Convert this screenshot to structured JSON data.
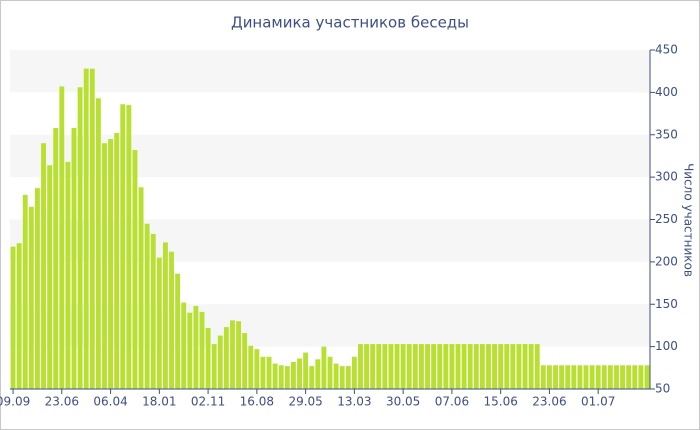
{
  "chart_data": {
    "type": "bar",
    "title": "Динамика участников беседы",
    "y_label": "Число участников",
    "categories": [
      "09.09",
      null,
      null,
      null,
      null,
      null,
      null,
      null,
      "23.06",
      null,
      null,
      null,
      null,
      null,
      null,
      null,
      "06.04",
      null,
      null,
      null,
      null,
      null,
      null,
      null,
      "18.01",
      null,
      null,
      null,
      null,
      null,
      null,
      null,
      "02.11",
      null,
      null,
      null,
      null,
      null,
      null,
      null,
      "16.08",
      null,
      null,
      null,
      null,
      null,
      null,
      null,
      "29.05",
      null,
      null,
      null,
      null,
      null,
      null,
      null,
      "13.03",
      null,
      null,
      null,
      null,
      null,
      null,
      null,
      "30.05",
      null,
      null,
      null,
      null,
      null,
      null,
      null,
      "07.06",
      null,
      null,
      null,
      null,
      null,
      null,
      null,
      "15.06",
      null,
      null,
      null,
      null,
      null,
      null,
      null,
      "23.06",
      null,
      null,
      null,
      null,
      null,
      null,
      null,
      "01.07",
      null,
      null,
      null,
      null,
      null,
      null,
      null,
      null
    ],
    "values": [
      218,
      222,
      279,
      265,
      287,
      340,
      314,
      358,
      407,
      318,
      358,
      406,
      428,
      428,
      393,
      340,
      345,
      352,
      386,
      385,
      332,
      288,
      245,
      233,
      205,
      223,
      212,
      186,
      152,
      140,
      148,
      141,
      122,
      103,
      113,
      123,
      131,
      130,
      116,
      101,
      97,
      88,
      88,
      80,
      78,
      77,
      82,
      86,
      93,
      77,
      85,
      100,
      88,
      80,
      77,
      77,
      88,
      103,
      103,
      103,
      103,
      103,
      103,
      103,
      103,
      103,
      103,
      103,
      103,
      103,
      103,
      103,
      103,
      103,
      103,
      103,
      103,
      103,
      103,
      103,
      103,
      103,
      103,
      103,
      103,
      103,
      103,
      78,
      78,
      78,
      78,
      78,
      78,
      78,
      78,
      78,
      78,
      78,
      78,
      78,
      78,
      78,
      78,
      78,
      78
    ],
    "color": "#b8e030",
    "ylim": [
      50,
      450
    ],
    "yticks": [
      50,
      100,
      150,
      200,
      250,
      300,
      350,
      400,
      450
    ],
    "y_axis_side": "right",
    "banded_grid": true
  }
}
